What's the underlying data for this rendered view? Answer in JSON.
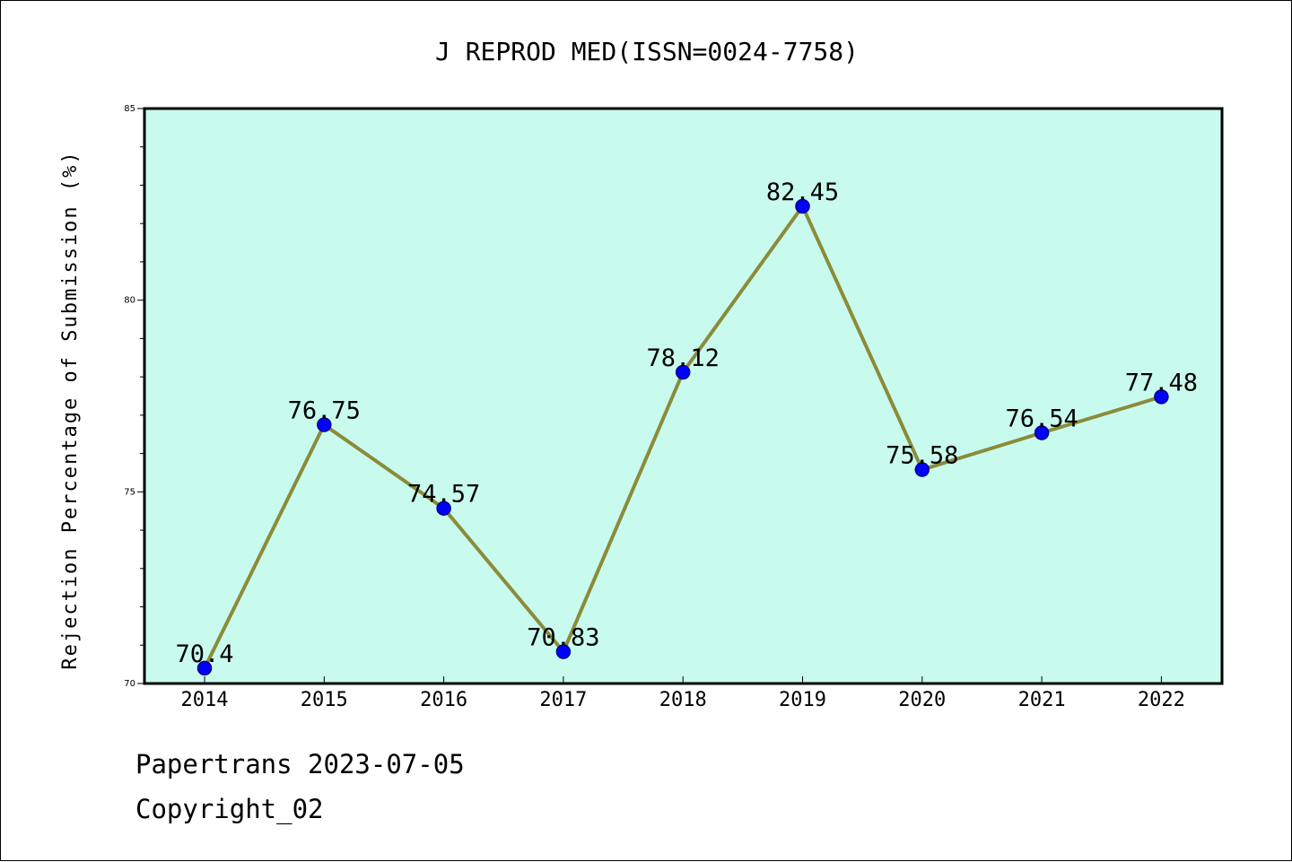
{
  "chart_data": {
    "type": "line",
    "title": "J REPROD MED(ISSN=0024-7758)",
    "xlabel": "",
    "ylabel": "Rejection Percentage of Submission (%)",
    "categories": [
      "2014",
      "2015",
      "2016",
      "2017",
      "2018",
      "2019",
      "2020",
      "2021",
      "2022"
    ],
    "series": [
      {
        "values": [
          70.4,
          76.75,
          74.57,
          70.83,
          78.12,
          82.45,
          75.58,
          76.54,
          77.48
        ],
        "labels": [
          "70.4",
          "76.75",
          "74.57",
          "70.83",
          "78.12",
          "82.45",
          "75.58",
          "76.54",
          "77.48"
        ]
      }
    ],
    "ylim": [
      70,
      85
    ],
    "yticks": [
      "70",
      "75",
      "80",
      "85"
    ],
    "grid": false,
    "legend": "none",
    "colors": {
      "plot_background": "#c8fbee",
      "line": "#8b8b3a",
      "marker": "#0000ff",
      "marker_edge": "#00008b"
    }
  },
  "footer": {
    "source": "Papertrans 2023-07-05",
    "copyright": "Copyright_02"
  }
}
